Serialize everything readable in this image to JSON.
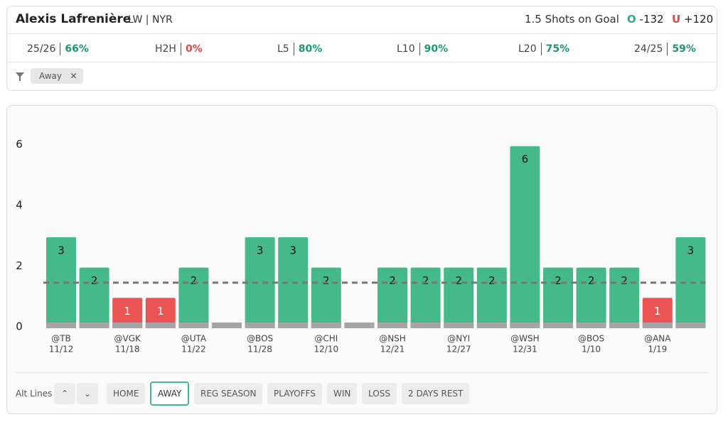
{
  "header": {
    "player": "Alexis Lafrenière",
    "position_team": "LW | NYR",
    "prop": "1.5 Shots on Goal",
    "over_label": "O",
    "over": "-132",
    "under_label": "U",
    "under": "+120"
  },
  "stats": [
    {
      "label": "25/26",
      "value": "66%",
      "color": "#1a9a6a"
    },
    {
      "label": "H2H",
      "value": "0%",
      "color": "#e04848"
    },
    {
      "label": "L5",
      "value": "80%",
      "color": "#1a9a6a"
    },
    {
      "label": "L10",
      "value": "90%",
      "color": "#1a9a6a"
    },
    {
      "label": "L20",
      "value": "75%",
      "color": "#1a9a6a"
    },
    {
      "label": "24/25",
      "value": "59%",
      "color": "#1a9a6a"
    }
  ],
  "filter": {
    "chip": "Away"
  },
  "chart_data": {
    "type": "bar",
    "categories": [
      "@TB",
      null,
      "@VGK",
      null,
      "@UTA",
      null,
      "@BOS",
      null,
      "@CHI",
      null,
      "@NSH",
      null,
      "@NYI",
      null,
      "@WSH",
      null,
      "@BOS",
      null,
      "@ANA",
      null
    ],
    "dates": [
      "11/12",
      null,
      "11/18",
      null,
      "11/22",
      null,
      "11/28",
      null,
      "12/10",
      null,
      "12/21",
      null,
      "12/27",
      null,
      "12/31",
      null,
      "1/10",
      null,
      "1/19",
      null
    ],
    "values": [
      3,
      2,
      1,
      1,
      2,
      0,
      3,
      3,
      2,
      0,
      2,
      2,
      2,
      2,
      6,
      2,
      2,
      2,
      1,
      3
    ],
    "line": 1.5,
    "over_color": "#45b98a",
    "under_color": "#ea5455",
    "ylim": [
      0,
      7
    ],
    "yticks": [
      0,
      2,
      4,
      6
    ]
  },
  "controls": {
    "alt_lines": "Alt Lines",
    "buttons": [
      "HOME",
      "AWAY",
      "REG SEASON",
      "PLAYOFFS",
      "WIN",
      "LOSS",
      "2 DAYS REST"
    ],
    "active": "AWAY"
  }
}
